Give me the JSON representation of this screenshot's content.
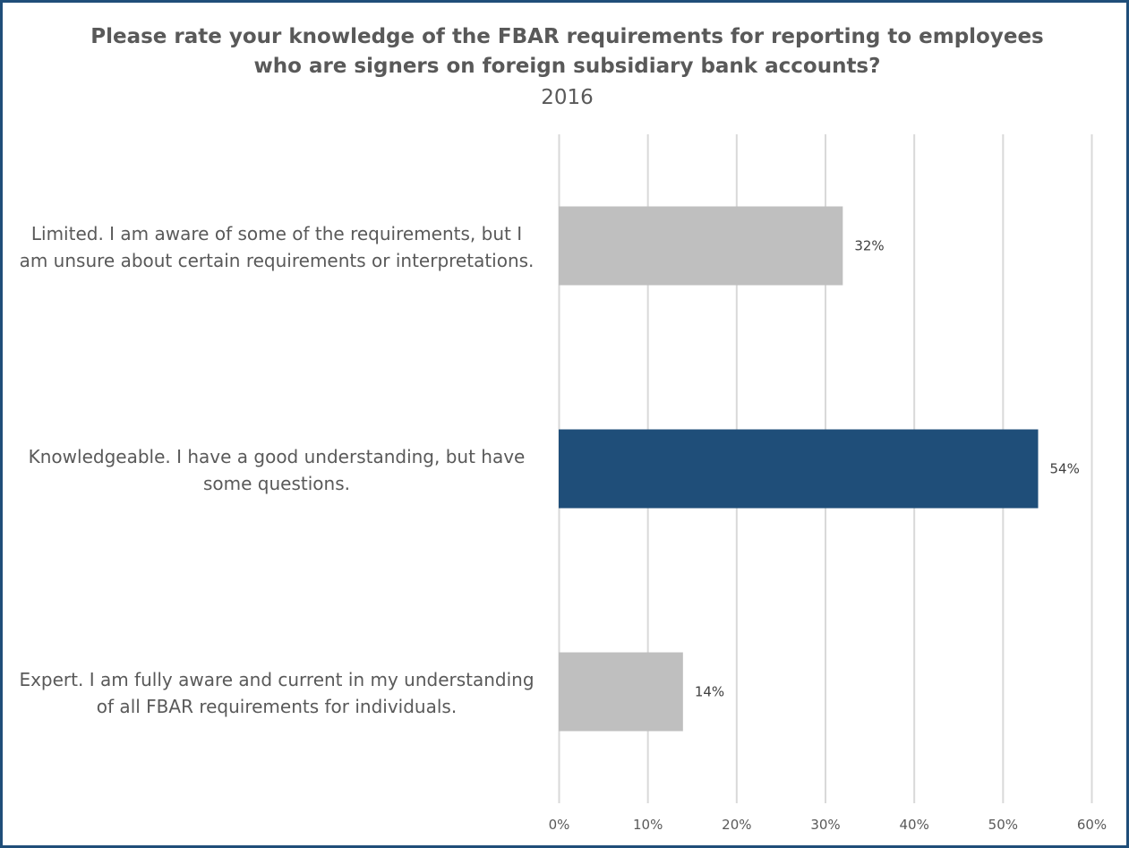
{
  "chart_data": {
    "type": "bar",
    "orientation": "horizontal",
    "title_lines": [
      "Please rate your knowledge of the FBAR requirements for reporting to employees",
      "who are signers on foreign subsidiary bank accounts?"
    ],
    "subtitle": "2016",
    "categories": [
      {
        "lines": [
          "Limited. I am aware of some of the requirements, but I",
          "am unsure about certain requirements or interpretations."
        ],
        "value": 32,
        "label": "32%",
        "color": "#bfbfbf"
      },
      {
        "lines": [
          "Knowledgeable. I have a good understanding, but have",
          "some questions."
        ],
        "value": 54,
        "label": "54%",
        "color": "#1f4e79"
      },
      {
        "lines": [
          "Expert. I am fully aware and current in my understanding",
          "of all FBAR requirements for individuals."
        ],
        "value": 14,
        "label": "14%",
        "color": "#bfbfbf"
      }
    ],
    "xlim": [
      0,
      60
    ],
    "xticks": [
      {
        "value": 0,
        "label": "0%"
      },
      {
        "value": 10,
        "label": "10%"
      },
      {
        "value": 20,
        "label": "20%"
      },
      {
        "value": 30,
        "label": "30%"
      },
      {
        "value": 40,
        "label": "40%"
      },
      {
        "value": 50,
        "label": "50%"
      },
      {
        "value": 60,
        "label": "60%"
      }
    ],
    "grid": true,
    "legend": "none",
    "colors": {
      "frame": "#1f4e79",
      "gridline": "#d9d9d9",
      "text": "#595959"
    }
  }
}
